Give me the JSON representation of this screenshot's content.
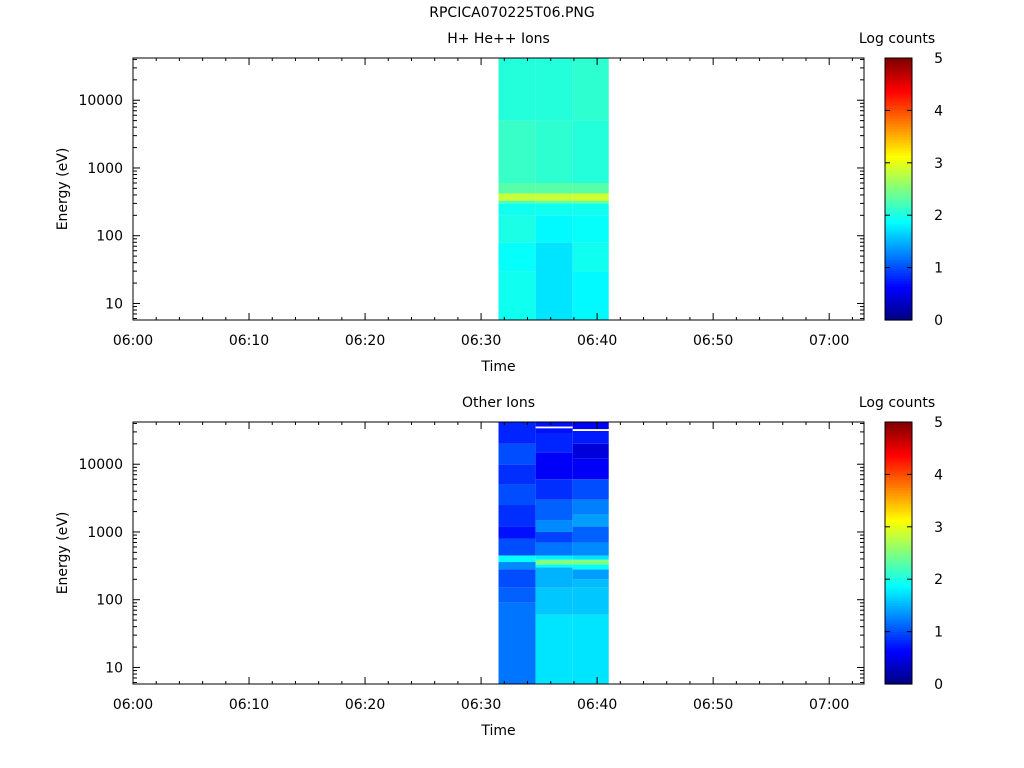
{
  "figure_title": "RPCICA070225T06.PNG",
  "chart_data": [
    {
      "type": "heatmap",
      "title": "H+ He++ Ions",
      "xlabel": "Time",
      "ylabel": "Energy (eV)",
      "y_scale": "log",
      "x_ticks": [
        "06:00",
        "06:10",
        "06:20",
        "06:30",
        "06:40",
        "06:50",
        "07:00"
      ],
      "x_range": [
        "06:00",
        "07:03"
      ],
      "y_ticks": [
        10,
        100,
        1000,
        10000
      ],
      "y_range": [
        5.7,
        42000
      ],
      "colorbar": {
        "label": "Log counts",
        "range": [
          0,
          5
        ],
        "ticks": [
          0,
          1,
          2,
          3,
          4,
          5
        ]
      },
      "time_bins": [
        {
          "start": "06:31.5",
          "end": "06:34.7",
          "cells": [
            [
              5.7,
              1.95
            ],
            [
              30,
              1.9
            ],
            [
              80,
              2.0
            ],
            [
              200,
              1.95
            ],
            [
              300,
              2.3
            ],
            [
              330,
              2.85
            ],
            [
              420,
              2.3
            ],
            [
              600,
              2.15
            ],
            [
              5000,
              2.05
            ],
            [
              42000,
              2.15
            ]
          ]
        },
        {
          "start": "06:34.7",
          "end": "06:37.9",
          "cells": [
            [
              5.7,
              1.75
            ],
            [
              80,
              1.85
            ],
            [
              200,
              1.95
            ],
            [
              300,
              2.4
            ],
            [
              330,
              2.85
            ],
            [
              420,
              2.3
            ],
            [
              600,
              2.1
            ],
            [
              5000,
              2.05
            ],
            [
              42000,
              2.2
            ]
          ]
        },
        {
          "start": "06:37.9",
          "end": "06:41.0",
          "cells": [
            [
              5.7,
              1.85
            ],
            [
              30,
              1.95
            ],
            [
              80,
              1.9
            ],
            [
              200,
              1.95
            ],
            [
              300,
              2.4
            ],
            [
              330,
              2.9
            ],
            [
              420,
              2.3
            ],
            [
              600,
              2.05
            ],
            [
              5000,
              2.1
            ],
            [
              42000,
              2.15
            ]
          ]
        }
      ]
    },
    {
      "type": "heatmap",
      "title": "Other Ions",
      "xlabel": "Time",
      "ylabel": "Energy (eV)",
      "y_scale": "log",
      "x_ticks": [
        "06:00",
        "06:10",
        "06:20",
        "06:30",
        "06:40",
        "06:50",
        "07:00"
      ],
      "x_range": [
        "06:00",
        "07:03"
      ],
      "y_ticks": [
        10,
        100,
        1000,
        10000
      ],
      "y_range": [
        5.7,
        42000
      ],
      "colorbar": {
        "label": "Log counts",
        "range": [
          0,
          5
        ],
        "ticks": [
          0,
          1,
          2,
          3,
          4,
          5
        ]
      },
      "time_bins": [
        {
          "start": "06:31.5",
          "end": "06:34.7",
          "cells": [
            [
              5.7,
              1.2
            ],
            [
              90,
              1.1
            ],
            [
              150,
              1.0
            ],
            [
              280,
              1.3
            ],
            [
              360,
              1.9
            ],
            [
              450,
              1.0
            ],
            [
              800,
              0.7
            ],
            [
              1200,
              0.85
            ],
            [
              2500,
              1.0
            ],
            [
              5000,
              0.85
            ],
            [
              10000,
              1.0
            ],
            [
              20000,
              0.8
            ],
            [
              42000,
              1.0
            ]
          ]
        },
        {
          "start": "06:34.7",
          "end": "06:37.9",
          "cells": [
            [
              5.7,
              1.75
            ],
            [
              60,
              1.6
            ],
            [
              150,
              1.5
            ],
            [
              300,
              1.9
            ],
            [
              330,
              2.5
            ],
            [
              390,
              1.8
            ],
            [
              450,
              1.2
            ],
            [
              700,
              0.95
            ],
            [
              1000,
              1.3
            ],
            [
              1500,
              1.1
            ],
            [
              3000,
              0.85
            ],
            [
              6000,
              0.6
            ],
            [
              15000,
              0.8
            ],
            [
              28000,
              0.7
            ],
            [
              34000,
              -1
            ],
            [
              36000,
              0.7
            ]
          ]
        },
        {
          "start": "06:37.9",
          "end": "06:41.0",
          "cells": [
            [
              5.7,
              1.75
            ],
            [
              60,
              1.6
            ],
            [
              150,
              1.55
            ],
            [
              200,
              1.4
            ],
            [
              280,
              1.9
            ],
            [
              330,
              2.5
            ],
            [
              390,
              1.75
            ],
            [
              450,
              1.3
            ],
            [
              700,
              1.1
            ],
            [
              1200,
              1.4
            ],
            [
              1800,
              1.25
            ],
            [
              3000,
              1.0
            ],
            [
              6000,
              0.6
            ],
            [
              12000,
              0.45
            ],
            [
              20000,
              0.75
            ],
            [
              31000,
              -1
            ],
            [
              33000,
              0.6
            ]
          ]
        }
      ]
    }
  ]
}
